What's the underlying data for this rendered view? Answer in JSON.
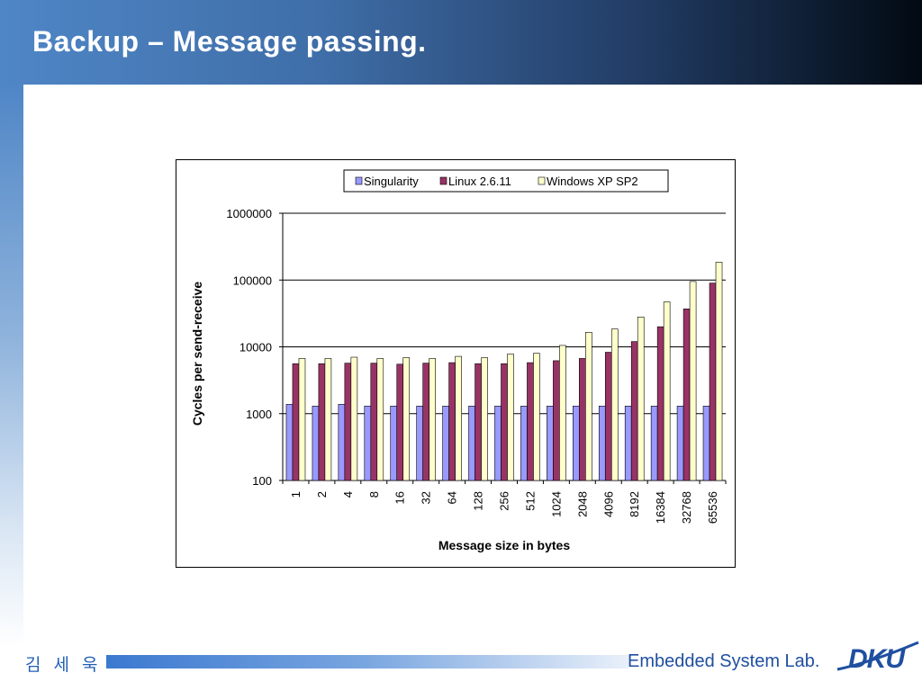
{
  "slide": {
    "title": "Backup – Message passing.",
    "footer_author": "김 세 욱",
    "footer_lab": "Embedded System Lab.",
    "logo_text": "DKU"
  },
  "colors": {
    "singularity": "#9999ff",
    "linux": "#993366",
    "windows": "#ffffcc",
    "header_dark": "#020a12",
    "footer_text": "#1f4fa0"
  },
  "chart_data": {
    "type": "bar",
    "scale": "log",
    "xlabel": "Message size in bytes",
    "ylabel": "Cycles per send-receive",
    "ylim": [
      100,
      1000000
    ],
    "yticks": [
      "100",
      "1000",
      "10000",
      "100000",
      "1000000"
    ],
    "grid": "major-y",
    "legend": "top",
    "categories": [
      "1",
      "2",
      "4",
      "8",
      "16",
      "32",
      "64",
      "128",
      "256",
      "512",
      "1024",
      "2048",
      "4096",
      "8192",
      "16384",
      "32768",
      "65536"
    ],
    "series": [
      {
        "name": "Singularity",
        "values": [
          1380,
          1300,
          1380,
          1300,
          1300,
          1300,
          1300,
          1300,
          1300,
          1300,
          1300,
          1300,
          1300,
          1300,
          1300,
          1300,
          1300
        ]
      },
      {
        "name": "Linux 2.6.11",
        "values": [
          5600,
          5600,
          5700,
          5700,
          5500,
          5700,
          5800,
          5600,
          5600,
          5800,
          6200,
          6700,
          8300,
          12000,
          20000,
          37000,
          90000
        ]
      },
      {
        "name": "Windows XP SP2",
        "values": [
          6700,
          6700,
          7000,
          6700,
          6900,
          6700,
          7200,
          6900,
          7800,
          8000,
          10500,
          16500,
          18500,
          28000,
          47000,
          95000,
          185000
        ]
      }
    ]
  }
}
